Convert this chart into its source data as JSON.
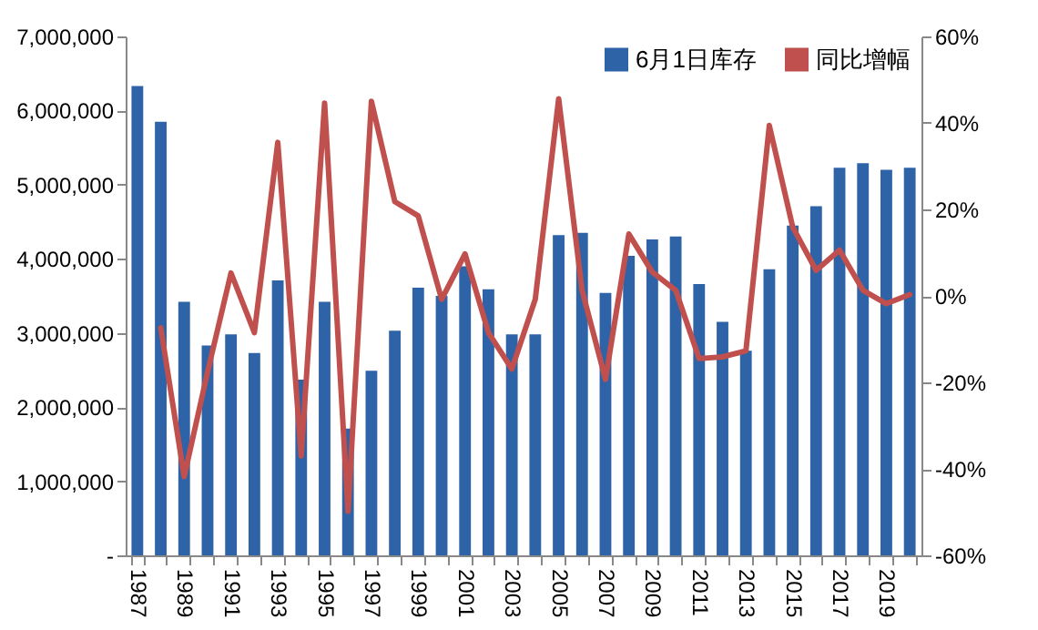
{
  "chart_data": {
    "type": "bar",
    "categories": [
      "1987",
      null,
      "1989",
      null,
      "1991",
      null,
      "1993",
      null,
      "1995",
      null,
      "1997",
      null,
      "1999",
      null,
      "2001",
      null,
      "2003",
      null,
      "2005",
      null,
      "2007",
      null,
      "2009",
      null,
      "2011",
      null,
      "2013",
      null,
      "2015",
      null,
      "2017",
      null,
      "2019",
      null
    ],
    "series": [
      {
        "name": "6月1日库存",
        "color": "#2e63a8",
        "values": [
          6330000,
          5850000,
          3420000,
          2830000,
          2980000,
          2730000,
          3710000,
          2370000,
          3420000,
          1710000,
          2490000,
          3030000,
          3610000,
          3500000,
          3900000,
          3590000,
          2980000,
          2980000,
          4320000,
          4350000,
          3540000,
          4040000,
          4260000,
          4300000,
          3660000,
          3150000,
          2760000,
          3860000,
          4450000,
          4710000,
          5230000,
          5290000,
          5200000,
          5230000
        ]
      },
      {
        "name": "同比增幅",
        "type": "line",
        "axis": "y2",
        "color": "#c0504d",
        "values": [
          null,
          -7.4,
          -41.8,
          -17.6,
          5.3,
          -8.5,
          35.5,
          -37,
          44.6,
          -49.8,
          45,
          21.8,
          18.5,
          -0.8,
          9.7,
          -8.5,
          -16.9,
          -0.8,
          45.6,
          1.3,
          -19.3,
          14.3,
          5.5,
          1.3,
          -14.5,
          -14.1,
          -12.7,
          39.4,
          15.9,
          5.9,
          10.6,
          1.3,
          -1.8,
          0.3
        ]
      }
    ],
    "ylim": [
      0,
      7000000
    ],
    "yticks": [
      {
        "value": 0,
        "label": "-"
      },
      {
        "value": 1000000,
        "label": "1,000,000"
      },
      {
        "value": 2000000,
        "label": "2,000,000"
      },
      {
        "value": 3000000,
        "label": "3,000,000"
      },
      {
        "value": 4000000,
        "label": "4,000,000"
      },
      {
        "value": 5000000,
        "label": "5,000,000"
      },
      {
        "value": 6000000,
        "label": "6,000,000"
      },
      {
        "value": 7000000,
        "label": "7,000,000"
      }
    ],
    "y2lim": [
      -60,
      60
    ],
    "y2ticks": [
      {
        "value": -60,
        "label": "-60%"
      },
      {
        "value": -40,
        "label": "-40%"
      },
      {
        "value": -20,
        "label": "-20%"
      },
      {
        "value": 0,
        "label": "0%"
      },
      {
        "value": 20,
        "label": "20%"
      },
      {
        "value": 40,
        "label": "40%"
      },
      {
        "value": 60,
        "label": "60%"
      }
    ],
    "legend": "top right",
    "grid": false
  }
}
